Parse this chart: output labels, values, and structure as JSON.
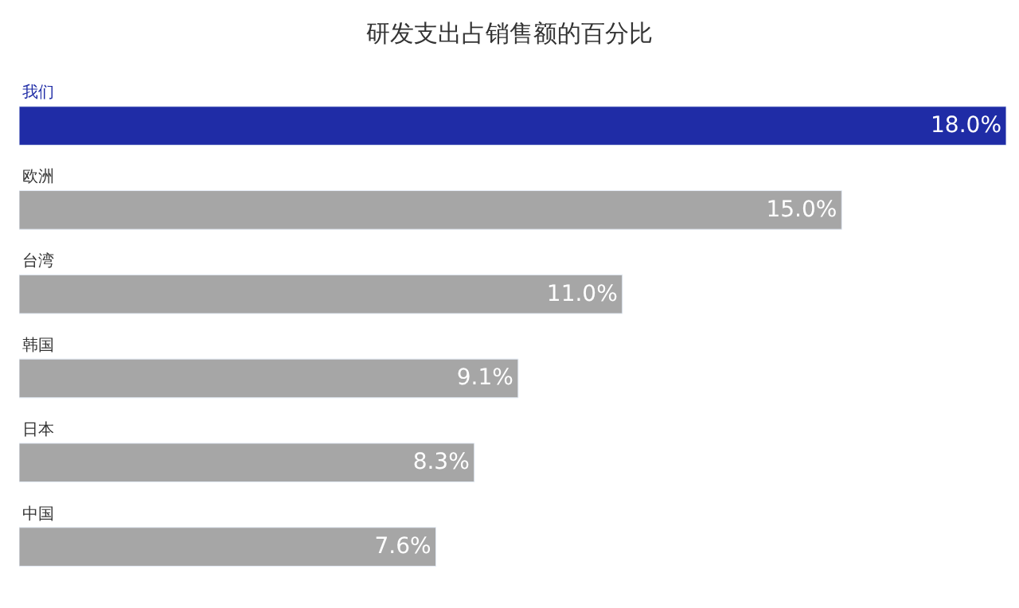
{
  "chart_data": {
    "type": "bar",
    "orientation": "horizontal",
    "title": "研发支出占销售额的百分比",
    "categories": [
      "我们",
      "欧洲",
      "台湾",
      "韩国",
      "日本",
      "中国"
    ],
    "values": [
      18.0,
      15.0,
      11.0,
      9.1,
      8.3,
      7.6
    ],
    "value_labels": [
      "18.0%",
      "15.0%",
      "11.0%",
      "9.1%",
      "8.3%",
      "7.6%"
    ],
    "colors": [
      "#1f2ca6",
      "#a6a6a6",
      "#a6a6a6",
      "#a6a6a6",
      "#a6a6a6",
      "#a6a6a6"
    ]
  }
}
